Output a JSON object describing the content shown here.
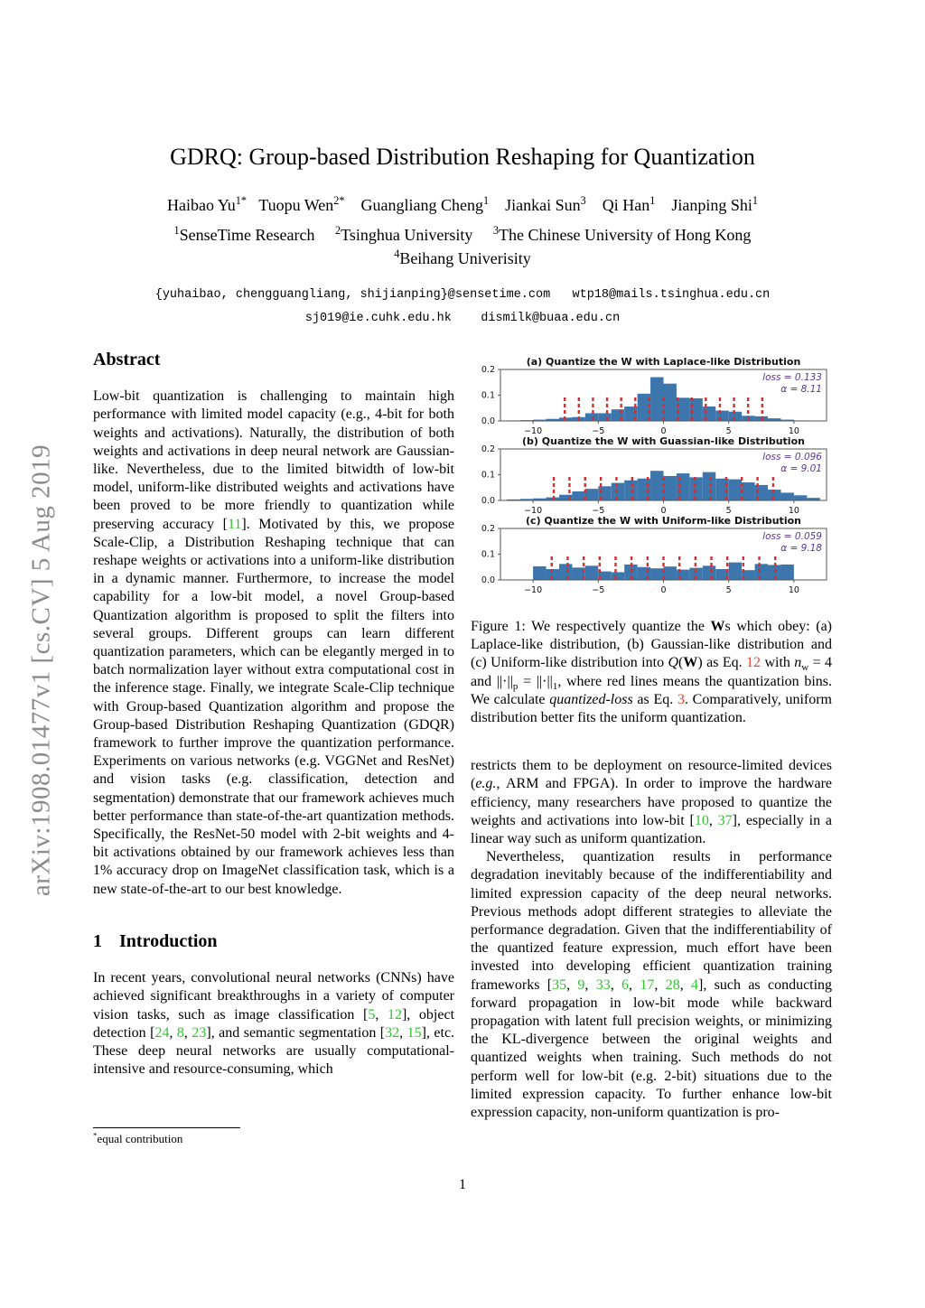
{
  "page": {
    "number": "1"
  },
  "watermark": {
    "text": "arXiv:1908.01477v1  [cs.CV]  5 Aug 2019",
    "color": "#8b8b8b"
  },
  "colors": {
    "bar": "#3c76ad",
    "quant_line": "#d03030",
    "annotation": "#5a3596",
    "citation_green": "#2fc52f",
    "eq_ref_red": "#e8432c"
  },
  "header": {
    "title": "GDRQ: Group-based Distribution Reshaping for Quantization",
    "authors_segments": [
      {
        "t": "Haibao Yu"
      },
      {
        "t": "1*",
        "c": "sup"
      },
      {
        "t": "   Tuopu Wen"
      },
      {
        "t": "2*",
        "c": "sup"
      },
      {
        "t": "    Guangliang Cheng"
      },
      {
        "t": "1",
        "c": "sup"
      },
      {
        "t": "    Jiankai Sun"
      },
      {
        "t": "3",
        "c": "sup"
      },
      {
        "t": "    Qi Han"
      },
      {
        "t": "1",
        "c": "sup"
      },
      {
        "t": "    Jianping Shi"
      },
      {
        "t": "1",
        "c": "sup"
      }
    ],
    "affil1_segments": [
      {
        "t": "1",
        "c": "sup"
      },
      {
        "t": "SenseTime Research     "
      },
      {
        "t": "2",
        "c": "sup"
      },
      {
        "t": "Tsinghua University     "
      },
      {
        "t": "3",
        "c": "sup"
      },
      {
        "t": "The Chinese University of Hong Kong"
      }
    ],
    "affil2_segments": [
      {
        "t": "4",
        "c": "sup"
      },
      {
        "t": "Beihang Univerisity"
      }
    ],
    "email_line1": "{yuhaibao, chengguangliang, shijianping}@sensetime.com   wtp18@mails.tsinghua.edu.cn",
    "email_line2": "sj019@ie.cuhk.edu.hk    dismilk@buaa.edu.cn"
  },
  "left_column": {
    "abstract_heading": "Abstract",
    "abstract_segments": [
      {
        "t": "Low-bit quantization is challenging to maintain high performance with limited model capacity (e.g., 4-bit for both weights and activations). Naturally, the distribution of both weights and activations in deep neural network are Gaussian-like. Nevertheless, due to the limited bitwidth of low-bit model, uniform-like distributed weights and activations have been proved to be more friendly to quantization while preserving accuracy ["
      },
      {
        "t": "11",
        "c": "green"
      },
      {
        "t": "]. Motivated by this, we propose Scale-Clip, a Distribution Reshaping technique that can reshape weights or activations into a uniform-like distribution in a dynamic manner. Furthermore, to increase the model capability for a low-bit model, a novel Group-based Quantization algorithm is proposed to split the filters into several groups. Different groups can learn different quantization parameters, which can be elegantly merged in to batch normalization layer without extra computational cost in the inference stage. Finally, we integrate Scale-Clip technique with Group-based Quantization algorithm and propose the Group-based Distribution Reshaping Quantization (GDQR) framework to further improve the quantization performance. Experiments on various networks (e.g. VGGNet and ResNet) and vision tasks (e.g. classification, detection and segmentation) demonstrate that our framework achieves much better performance than state-of-the-art quantization methods. Specifically, the ResNet-50 model with 2-bit weights and 4-bit activations obtained by our framework achieves less than 1% accuracy drop on ImageNet classification task, which is a new state-of-the-art to our best knowledge."
      }
    ],
    "intro_heading_number": "1",
    "intro_heading_label": "Introduction",
    "intro_segments": [
      {
        "t": "In recent years, convolutional neural networks (CNNs) have achieved significant breakthroughs in a variety of computer vision tasks, such as image classification ["
      },
      {
        "t": "5",
        "c": "green"
      },
      {
        "t": ", "
      },
      {
        "t": "12",
        "c": "green"
      },
      {
        "t": "], object detection ["
      },
      {
        "t": "24",
        "c": "green"
      },
      {
        "t": ", "
      },
      {
        "t": "8",
        "c": "green"
      },
      {
        "t": ", "
      },
      {
        "t": "23",
        "c": "green"
      },
      {
        "t": "], and semantic segmentation ["
      },
      {
        "t": "32",
        "c": "green"
      },
      {
        "t": ", "
      },
      {
        "t": "15",
        "c": "green"
      },
      {
        "t": "], etc. These deep neural networks are usually computational-intensive and resource-consuming, which"
      }
    ],
    "footnote_segments": [
      {
        "t": "*",
        "c": "sup"
      },
      {
        "t": "equal contribution"
      }
    ]
  },
  "right_column": {
    "caption_segments": [
      {
        "t": "Figure 1: We respectively quantize the "
      },
      {
        "t": "W",
        "c": "bold"
      },
      {
        "t": "s which obey: (a) Laplace-like distribution, (b) Gaussian-like distribution and (c) Uniform-like distribution into "
      },
      {
        "t": "Q",
        "c": "italic"
      },
      {
        "t": "("
      },
      {
        "t": "W",
        "c": "bold"
      },
      {
        "t": ") as Eq. "
      },
      {
        "t": "12",
        "c": "red"
      },
      {
        "t": " with "
      },
      {
        "t": "n",
        "c": "italic"
      },
      {
        "t": "w",
        "c": "sub"
      },
      {
        "t": " = 4 and ||·||"
      },
      {
        "t": "p",
        "c": "sub"
      },
      {
        "t": " = ||·||"
      },
      {
        "t": "1",
        "c": "sub"
      },
      {
        "t": ", where red lines means the quantization bins. We calculate "
      },
      {
        "t": "quantized-loss",
        "c": "italic"
      },
      {
        "t": " as Eq. "
      },
      {
        "t": "3",
        "c": "red"
      },
      {
        "t": ". Comparatively, uniform distribution better fits the uniform quantization."
      }
    ],
    "para1_segments": [
      {
        "t": "restricts them to be deployment on resource-limited devices ("
      },
      {
        "t": "e.g.",
        "c": "italic"
      },
      {
        "t": ", ARM and FPGA). In order to improve the hardware efficiency, many researchers have proposed to quantize the weights and activations into low-bit ["
      },
      {
        "t": "10",
        "c": "green"
      },
      {
        "t": ", "
      },
      {
        "t": "37",
        "c": "green"
      },
      {
        "t": "], especially in a linear way such as uniform quantization."
      }
    ],
    "para2_segments": [
      {
        "t": "Nevertheless, quantization results in performance degradation inevitably because of the indifferentiability and limited expression capacity of the deep neural networks. Previous methods adopt different strategies to alleviate the performance degradation. Given that the indifferentiability of the quantized feature expression, much effort have been invested into developing efficient quantization training frameworks ["
      },
      {
        "t": "35",
        "c": "green"
      },
      {
        "t": ", "
      },
      {
        "t": "9",
        "c": "green"
      },
      {
        "t": ", "
      },
      {
        "t": "33",
        "c": "green"
      },
      {
        "t": ", "
      },
      {
        "t": "6",
        "c": "green"
      },
      {
        "t": ", "
      },
      {
        "t": "17",
        "c": "green"
      },
      {
        "t": ", "
      },
      {
        "t": "28",
        "c": "green"
      },
      {
        "t": ", "
      },
      {
        "t": "4",
        "c": "green"
      },
      {
        "t": "], such as conducting forward propagation in low-bit mode while backward propagation with latent full precision weights, or minimizing the KL-divergence between the original weights and quantized weights when training. Such methods do not perform well for low-bit (e.g. 2-bit) situations due to the limited expression capacity. To further enhance low-bit expression capacity, non-uniform quantization is pro-"
      }
    ]
  },
  "chart_data": [
    {
      "type": "bar",
      "subtype": "histogram",
      "title": "(a) Quantize the W with Laplace-like Distribution",
      "loss": 0.133,
      "alpha": 8.11,
      "loss_label": "loss = 0.133",
      "alpha_label": "α = 8.11",
      "bin_start": -12,
      "bin_width": 1,
      "values": [
        0.002,
        0.003,
        0.005,
        0.008,
        0.013,
        0.015,
        0.03,
        0.03,
        0.045,
        0.056,
        0.106,
        0.17,
        0.145,
        0.09,
        0.088,
        0.056,
        0.04,
        0.036,
        0.02,
        0.018,
        0.01,
        0.005,
        0.002,
        0.001
      ],
      "xticks": [
        -10,
        -5,
        0,
        5,
        10
      ],
      "xtick_labels": [
        "−10",
        "−5",
        "0",
        "5",
        "10"
      ],
      "yticks": [
        0,
        0.1,
        0.2
      ],
      "ytick_labels": [
        "0.0",
        "0.1",
        "0.2"
      ],
      "xlim": [
        -12.5,
        12.5
      ],
      "ylim": [
        0,
        0.2
      ],
      "red_lines": {
        "count": 15,
        "rule": "x = k·(2α/15), k = −7…7",
        "height": 0.095
      }
    },
    {
      "type": "bar",
      "subtype": "histogram",
      "title": "(b) Quantize the W with Guassian-like Distribution",
      "loss": 0.096,
      "alpha": 9.01,
      "loss_label": "loss = 0.096",
      "alpha_label": "α = 9.01",
      "bin_start": -12,
      "bin_width": 1,
      "values": [
        0.004,
        0.006,
        0.008,
        0.012,
        0.022,
        0.035,
        0.045,
        0.055,
        0.068,
        0.078,
        0.085,
        0.115,
        0.095,
        0.105,
        0.09,
        0.11,
        0.085,
        0.082,
        0.07,
        0.06,
        0.042,
        0.03,
        0.02,
        0.01
      ],
      "xticks": [
        -10,
        -5,
        0,
        5,
        10
      ],
      "xtick_labels": [
        "−10",
        "−5",
        "0",
        "5",
        "10"
      ],
      "yticks": [
        0,
        0.1,
        0.2
      ],
      "ytick_labels": [
        "0.0",
        "0.1",
        "0.2"
      ],
      "xlim": [
        -12.5,
        12.5
      ],
      "ylim": [
        0,
        0.2
      ],
      "red_lines": {
        "count": 15,
        "rule": "x = k·(2α/15), k = −7…7",
        "height": 0.095
      }
    },
    {
      "type": "bar",
      "subtype": "histogram",
      "title": "(c) Quantize the W with Uniform-like Distribution",
      "loss": 0.059,
      "alpha": 9.18,
      "loss_label": "loss = 0.059",
      "alpha_label": "α = 9.18",
      "bin_start": -12,
      "bin_width": 1,
      "values": [
        0,
        0,
        0.053,
        0.042,
        0.062,
        0.048,
        0.055,
        0.033,
        0.03,
        0.06,
        0.05,
        0.045,
        0.052,
        0.04,
        0.047,
        0.055,
        0.042,
        0.068,
        0.038,
        0.062,
        0.058,
        0.06,
        0,
        0
      ],
      "xticks": [
        -10,
        -5,
        0,
        5,
        10
      ],
      "xtick_labels": [
        "−10",
        "−5",
        "0",
        "5",
        "10"
      ],
      "yticks": [
        0,
        0.1,
        0.2
      ],
      "ytick_labels": [
        "0.0",
        "0.1",
        "0.2"
      ],
      "xlim": [
        -12.5,
        12.5
      ],
      "ylim": [
        0,
        0.2
      ],
      "red_lines": {
        "count": 15,
        "rule": "x = k·(2α/15), k = −7…7",
        "height": 0.095
      }
    }
  ]
}
